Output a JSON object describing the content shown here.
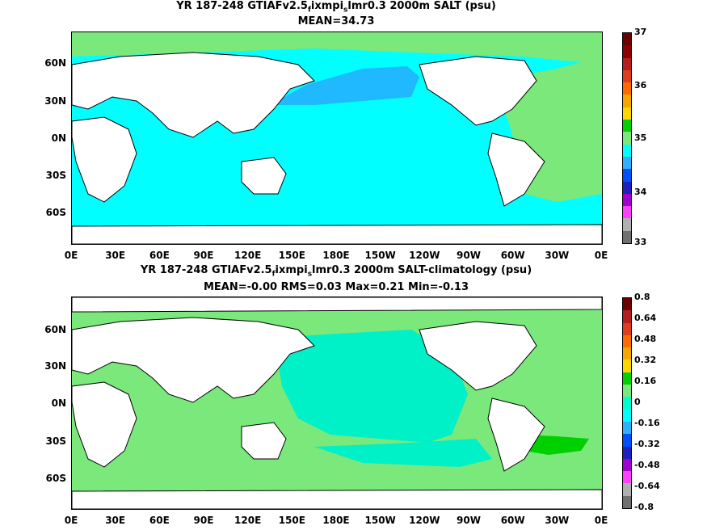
{
  "panels": [
    {
      "title_pre": "YR 187-248 GTIAFv2.5",
      "title_sub1": "f",
      "title_mid": "ixmpi",
      "title_sub2": "s",
      "title_post": "lmr0.3 2000m SALT (psu)",
      "subtitle": "MEAN=34.73",
      "colorbar": {
        "labels": [
          "37",
          "36",
          "35",
          "34",
          "33"
        ],
        "colors": [
          "#6b0000",
          "#8b0000",
          "#b81d1d",
          "#e03c1e",
          "#ff6a00",
          "#f7a600",
          "#ffd700",
          "#00d000",
          "#7ae87a",
          "#00ffff",
          "#30b0ff",
          "#0050ff",
          "#2020c0",
          "#a000d0",
          "#ff40ff",
          "#b0b0b0",
          "#707070"
        ]
      },
      "fills": {
        "ocean": "#00ffff",
        "north_pacific": "#20b8ff",
        "atlantic": "#7ae87a",
        "land": "#ffffff"
      }
    },
    {
      "title_pre": "YR 187-248 GTIAFv2.5",
      "title_sub1": "f",
      "title_mid": "ixmpi",
      "title_sub2": "s",
      "title_post": "lmr0.3 2000m SALT-climatology (psu)",
      "subtitle": "MEAN=-0.00   RMS=0.03   Max=0.21   Min=-0.13",
      "colorbar": {
        "labels": [
          "0.8",
          "0.64",
          "0.48",
          "0.32",
          "0.16",
          "0",
          "-0.16",
          "-0.32",
          "-0.48",
          "-0.64",
          "-0.8"
        ],
        "colors": [
          "#6b0000",
          "#b81d1d",
          "#e03c1e",
          "#ff6a00",
          "#f7a600",
          "#ffd700",
          "#00d000",
          "#7ae87a",
          "#00ffcc",
          "#00ffff",
          "#30b0ff",
          "#0050ff",
          "#2020c0",
          "#a000d0",
          "#ff40ff",
          "#b0b0b0",
          "#707070"
        ]
      },
      "fills": {
        "ocean": "#7ae87a",
        "tropics": "#00f0c8",
        "hot": "#00d000",
        "land": "#ffffff"
      }
    }
  ],
  "chart_data": [
    {
      "type": "heatmap",
      "title": "YR 187-248 GTIAFv2.5fixmpislmr0.3 2000m SALT (psu)",
      "subtitle": "MEAN=34.73",
      "x_ticks": [
        "0E",
        "30E",
        "60E",
        "90E",
        "120E",
        "150E",
        "180E",
        "150W",
        "120W",
        "90W",
        "60W",
        "30W",
        "0E"
      ],
      "y_ticks": [
        "60N",
        "30N",
        "0N",
        "30S",
        "60S"
      ],
      "x_range_deg": [
        0,
        360
      ],
      "y_range_deg": [
        -80,
        90
      ],
      "colorbar_range": [
        33,
        37
      ],
      "colorbar_ticks": [
        37,
        36,
        35,
        34,
        33
      ],
      "mean": 34.73
    },
    {
      "type": "heatmap",
      "title": "YR 187-248 GTIAFv2.5fixmpislmr0.3 2000m SALT-climatology (psu)",
      "subtitle": "MEAN=-0.00   RMS=0.03   Max=0.21   Min=-0.13",
      "x_ticks": [
        "0E",
        "30E",
        "60E",
        "90E",
        "120E",
        "150E",
        "180E",
        "150W",
        "120W",
        "90W",
        "60W",
        "30W",
        "0E"
      ],
      "y_ticks": [
        "60N",
        "30N",
        "0N",
        "30S",
        "60S"
      ],
      "x_range_deg": [
        0,
        360
      ],
      "y_range_deg": [
        -80,
        90
      ],
      "colorbar_range": [
        -0.8,
        0.8
      ],
      "colorbar_ticks": [
        0.8,
        0.64,
        0.48,
        0.32,
        0.16,
        0,
        -0.16,
        -0.32,
        -0.48,
        -0.64,
        -0.8
      ],
      "mean": -0.0,
      "rms": 0.03,
      "max": 0.21,
      "min": -0.13
    }
  ]
}
